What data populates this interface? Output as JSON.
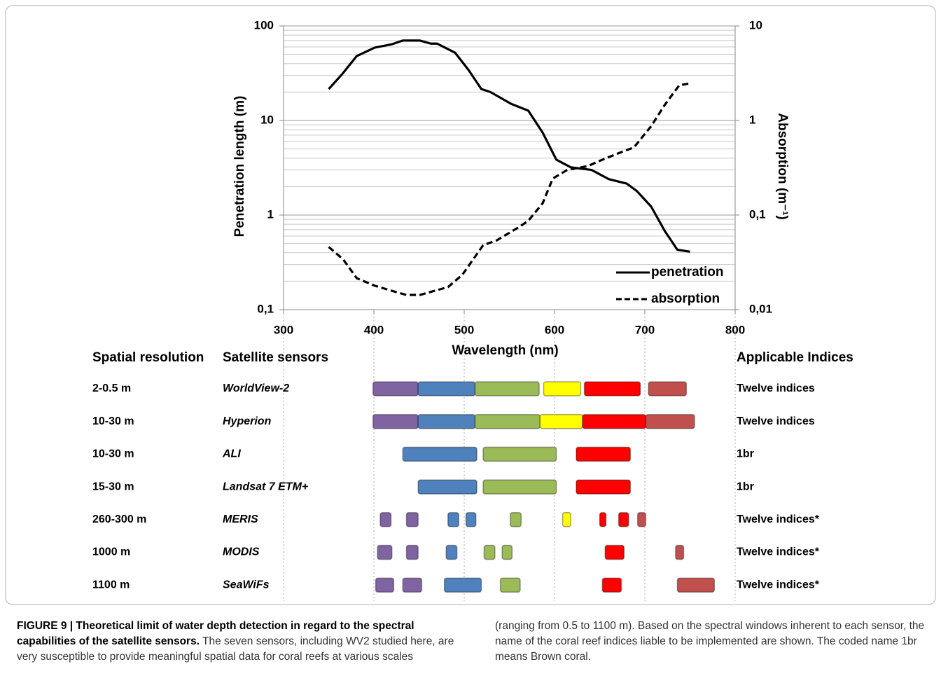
{
  "chart_data": {
    "type": "line",
    "xlabel": "Wavelength (nm)",
    "ylabel": "Penetration length (m)",
    "y2label": "Absorption (m⁻¹)",
    "xlim": [
      300,
      800
    ],
    "xticks": [
      300,
      400,
      500,
      600,
      700,
      800
    ],
    "ylim": [
      0.1,
      100
    ],
    "yticks": [
      {
        "value": 0.1,
        "label": "0,1"
      },
      1,
      10,
      100
    ],
    "y2lim": [
      0.01,
      10
    ],
    "y2ticks": [
      {
        "value": 0.01,
        "label": "0,01"
      },
      {
        "value": 0.1,
        "label": "0,1"
      },
      1,
      10
    ],
    "log_scale": true,
    "grid": true,
    "yminorgrid": [
      0.2,
      0.3,
      0.4,
      0.5,
      0.6,
      0.7,
      0.8,
      0.9,
      2,
      3,
      4,
      5,
      6,
      7,
      8,
      9,
      20,
      30,
      40,
      50,
      60,
      70,
      80,
      90
    ],
    "legend": "lower right",
    "series": [
      {
        "name": "penetration",
        "color": "#000000",
        "linestyle": "solid",
        "x": [
          350,
          365,
          381,
          401,
          420,
          432,
          451,
          463,
          470,
          490,
          505,
          519,
          529,
          552,
          571,
          587,
          602,
          618,
          641,
          660,
          680,
          691,
          707,
          722,
          736,
          750
        ],
        "values": [
          21.5,
          31,
          48,
          59,
          64,
          70,
          70,
          65,
          65,
          52,
          34,
          21.5,
          20,
          15,
          12.7,
          7.4,
          3.85,
          3.2,
          3.0,
          2.4,
          2.15,
          1.8,
          1.23,
          0.68,
          0.43,
          0.41
        ]
      },
      {
        "name": "absorption",
        "color": "#000000",
        "linestyle": "dashed",
        "axis": "y2",
        "x": [
          350,
          366,
          381,
          401,
          420,
          436,
          451,
          467,
          482,
          498,
          521,
          536,
          560,
          571,
          587,
          598,
          614,
          637,
          653,
          668,
          688,
          707,
          722,
          738,
          750
        ],
        "values": [
          0.046,
          0.034,
          0.0215,
          0.0179,
          0.0158,
          0.0143,
          0.0143,
          0.0158,
          0.0173,
          0.0234,
          0.048,
          0.054,
          0.074,
          0.087,
          0.134,
          0.243,
          0.3,
          0.33,
          0.385,
          0.44,
          0.52,
          0.87,
          1.46,
          2.35,
          2.47
        ]
      }
    ],
    "table_headers": [
      "Spatial resolution",
      "Satellite sensors",
      "Applicable Indices"
    ],
    "sensors": [
      {
        "resolution": "2-0.5 m",
        "name": "WorldView-2",
        "indices": "Twelve indices",
        "bands": [
          {
            "range": [
              399,
              449
            ],
            "color": "#8064a2"
          },
          {
            "range": [
              449,
              512
            ],
            "color": "#4f81bd"
          },
          {
            "range": [
              512,
              583
            ],
            "color": "#9bbb59"
          },
          {
            "range": [
              588,
              629
            ],
            "color": "#ffff00"
          },
          {
            "range": [
              633,
              695
            ],
            "color": "#ff0000"
          },
          {
            "range": [
              704,
              746
            ],
            "color": "#c0504d"
          }
        ]
      },
      {
        "resolution": "10-30 m",
        "name": "Hyperion",
        "indices": "Twelve indices",
        "bands": [
          {
            "range": [
              399,
              449
            ],
            "color": "#8064a2"
          },
          {
            "range": [
              449,
              512
            ],
            "color": "#4f81bd"
          },
          {
            "range": [
              512,
              584
            ],
            "color": "#9bbb59"
          },
          {
            "range": [
              584,
              631
            ],
            "color": "#ffff00"
          },
          {
            "range": [
              631,
              701
            ],
            "color": "#ff0000"
          },
          {
            "range": [
              701,
              755
            ],
            "color": "#c0504d"
          }
        ]
      },
      {
        "resolution": "10-30 m",
        "name": "ALI",
        "indices": "1br",
        "bands": [
          {
            "range": [
              432,
              514
            ],
            "color": "#4f81bd"
          },
          {
            "range": [
              521,
              602
            ],
            "color": "#9bbb59"
          },
          {
            "range": [
              624,
              684
            ],
            "color": "#ff0000"
          }
        ]
      },
      {
        "resolution": "15-30 m",
        "name": "Landsat 7 ETM+",
        "indices": "1br",
        "bands": [
          {
            "range": [
              449,
              514
            ],
            "color": "#4f81bd"
          },
          {
            "range": [
              521,
              602
            ],
            "color": "#9bbb59"
          },
          {
            "range": [
              624,
              684
            ],
            "color": "#ff0000"
          }
        ]
      },
      {
        "resolution": "260-300 m",
        "name": "MERIS",
        "indices": "Twelve indices*",
        "bands": [
          {
            "range": [
              407,
              419
            ],
            "color": "#8064a2"
          },
          {
            "range": [
              436,
              449
            ],
            "color": "#8064a2"
          },
          {
            "range": [
              482,
              494
            ],
            "color": "#4f81bd"
          },
          {
            "range": [
              502,
              513
            ],
            "color": "#4f81bd"
          },
          {
            "range": [
              551,
              563
            ],
            "color": "#9bbb59"
          },
          {
            "range": [
              609,
              618
            ],
            "color": "#ffff00"
          },
          {
            "range": [
              650,
              657
            ],
            "color": "#ff0000"
          },
          {
            "range": [
              671,
              682
            ],
            "color": "#ff0000"
          },
          {
            "range": [
              692,
              701
            ],
            "color": "#c0504d"
          }
        ]
      },
      {
        "resolution": "1000 m",
        "name": "MODIS",
        "indices": "Twelve indices*",
        "bands": [
          {
            "range": [
              404,
              420
            ],
            "color": "#8064a2"
          },
          {
            "range": [
              436,
              449
            ],
            "color": "#8064a2"
          },
          {
            "range": [
              480,
              492
            ],
            "color": "#4f81bd"
          },
          {
            "range": [
              522,
              534
            ],
            "color": "#9bbb59"
          },
          {
            "range": [
              542,
              553
            ],
            "color": "#9bbb59"
          },
          {
            "range": [
              656,
              677
            ],
            "color": "#ff0000"
          },
          {
            "range": [
              734,
              743
            ],
            "color": "#c0504d"
          }
        ]
      },
      {
        "resolution": "1100 m",
        "name": "SeaWiFs",
        "indices": "Twelve indices*",
        "bands": [
          {
            "range": [
              402,
              422
            ],
            "color": "#8064a2"
          },
          {
            "range": [
              432,
              453
            ],
            "color": "#8064a2"
          },
          {
            "range": [
              478,
              519
            ],
            "color": "#4f81bd"
          },
          {
            "range": [
              540,
              562
            ],
            "color": "#9bbb59"
          },
          {
            "range": [
              653,
              674
            ],
            "color": "#ff0000"
          },
          {
            "range": [
              736,
              777
            ],
            "color": "#c0504d"
          }
        ]
      }
    ]
  },
  "caption": {
    "label": "FIGURE 9 | Theoretical limit of water depth detection in regard to the spectral capabilities of the satellite sensors.",
    "text": "The seven sensors, including WV2 studied here, are very susceptible to provide meaningful spatial data for coral reefs at various scales (ranging from 0.5 to 1100 m). Based on the spectral windows inherent to each sensor, the name of the coral reef indices liable to be implemented are shown. The coded name 1br means Brown coral."
  }
}
